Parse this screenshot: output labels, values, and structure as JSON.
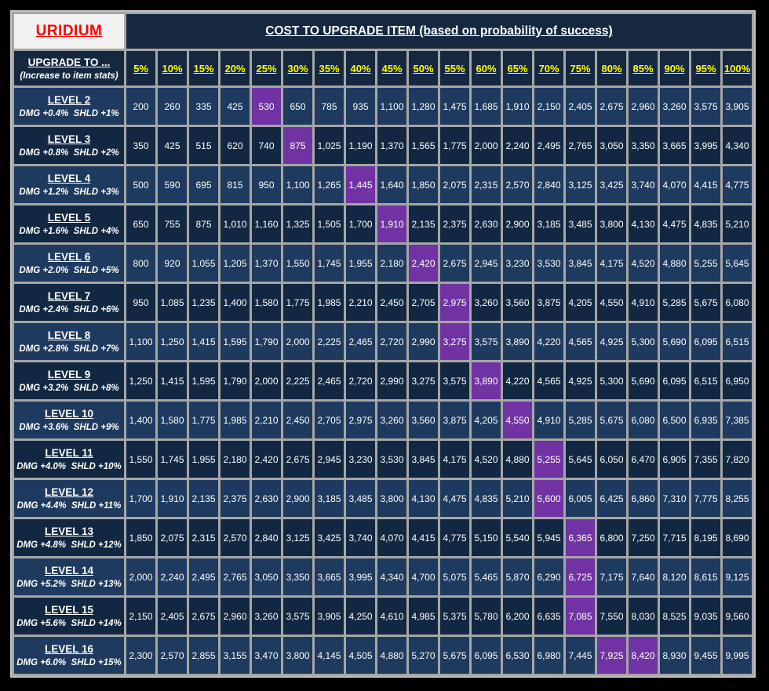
{
  "table": {
    "corner_label": "URIDIUM",
    "title": "COST TO UPGRADE ITEM (based on probability of success)",
    "row_header": {
      "main": "UPGRADE TO ...",
      "sub": "(Increase to item stats)"
    },
    "columns": [
      "5%",
      "10%",
      "15%",
      "20%",
      "25%",
      "30%",
      "35%",
      "40%",
      "45%",
      "50%",
      "55%",
      "60%",
      "65%",
      "70%",
      "75%",
      "80%",
      "85%",
      "90%",
      "95%",
      "100%"
    ],
    "rows": [
      {
        "level": "LEVEL 2",
        "stats": "DMG +0.4%  SHLD +1%",
        "highlight": [
          4
        ],
        "values": [
          "200",
          "260",
          "335",
          "425",
          "530",
          "650",
          "785",
          "935",
          "1,100",
          "1,280",
          "1,475",
          "1,685",
          "1,910",
          "2,150",
          "2,405",
          "2,675",
          "2,960",
          "3,260",
          "3,575",
          "3,905"
        ]
      },
      {
        "level": "LEVEL 3",
        "stats": "DMG +0.8%  SHLD +2%",
        "highlight": [
          5
        ],
        "values": [
          "350",
          "425",
          "515",
          "620",
          "740",
          "875",
          "1,025",
          "1,190",
          "1,370",
          "1,565",
          "1,775",
          "2,000",
          "2,240",
          "2,495",
          "2,765",
          "3,050",
          "3,350",
          "3,665",
          "3,995",
          "4,340"
        ]
      },
      {
        "level": "LEVEL 4",
        "stats": "DMG +1.2%  SHLD +3%",
        "highlight": [
          7
        ],
        "values": [
          "500",
          "590",
          "695",
          "815",
          "950",
          "1,100",
          "1,265",
          "1,445",
          "1,640",
          "1,850",
          "2,075",
          "2,315",
          "2,570",
          "2,840",
          "3,125",
          "3,425",
          "3,740",
          "4,070",
          "4,415",
          "4,775"
        ]
      },
      {
        "level": "LEVEL 5",
        "stats": "DMG +1.6%  SHLD +4%",
        "highlight": [
          8
        ],
        "values": [
          "650",
          "755",
          "875",
          "1,010",
          "1,160",
          "1,325",
          "1,505",
          "1,700",
          "1,910",
          "2,135",
          "2,375",
          "2,630",
          "2,900",
          "3,185",
          "3,485",
          "3,800",
          "4,130",
          "4,475",
          "4,835",
          "5,210"
        ]
      },
      {
        "level": "LEVEL 6",
        "stats": "DMG +2.0%  SHLD +5%",
        "highlight": [
          9
        ],
        "values": [
          "800",
          "920",
          "1,055",
          "1,205",
          "1,370",
          "1,550",
          "1,745",
          "1,955",
          "2,180",
          "2,420",
          "2,675",
          "2,945",
          "3,230",
          "3,530",
          "3,845",
          "4,175",
          "4,520",
          "4,880",
          "5,255",
          "5,645"
        ]
      },
      {
        "level": "LEVEL 7",
        "stats": "DMG +2.4%  SHLD +6%",
        "highlight": [
          10
        ],
        "values": [
          "950",
          "1,085",
          "1,235",
          "1,400",
          "1,580",
          "1,775",
          "1,985",
          "2,210",
          "2,450",
          "2,705",
          "2,975",
          "3,260",
          "3,560",
          "3,875",
          "4,205",
          "4,550",
          "4,910",
          "5,285",
          "5,675",
          "6,080"
        ]
      },
      {
        "level": "LEVEL 8",
        "stats": "DMG +2.8%  SHLD +7%",
        "highlight": [
          10
        ],
        "values": [
          "1,100",
          "1,250",
          "1,415",
          "1,595",
          "1,790",
          "2,000",
          "2,225",
          "2,465",
          "2,720",
          "2,990",
          "3,275",
          "3,575",
          "3,890",
          "4,220",
          "4,565",
          "4,925",
          "5,300",
          "5,690",
          "6,095",
          "6,515"
        ]
      },
      {
        "level": "LEVEL 9",
        "stats": "DMG +3.2%  SHLD +8%",
        "highlight": [
          11
        ],
        "values": [
          "1,250",
          "1,415",
          "1,595",
          "1,790",
          "2,000",
          "2,225",
          "2,465",
          "2,720",
          "2,990",
          "3,275",
          "3,575",
          "3,890",
          "4,220",
          "4,565",
          "4,925",
          "5,300",
          "5,690",
          "6,095",
          "6,515",
          "6,950"
        ]
      },
      {
        "level": "LEVEL 10",
        "stats": "DMG +3.6%  SHLD +9%",
        "highlight": [
          12
        ],
        "values": [
          "1,400",
          "1,580",
          "1,775",
          "1,985",
          "2,210",
          "2,450",
          "2,705",
          "2,975",
          "3,260",
          "3,560",
          "3,875",
          "4,205",
          "4,550",
          "4,910",
          "5,285",
          "5,675",
          "6,080",
          "6,500",
          "6,935",
          "7,385"
        ]
      },
      {
        "level": "LEVEL 11",
        "stats": "DMG +4.0%  SHLD +10%",
        "highlight": [
          13
        ],
        "values": [
          "1,550",
          "1,745",
          "1,955",
          "2,180",
          "2,420",
          "2,675",
          "2,945",
          "3,230",
          "3,530",
          "3,845",
          "4,175",
          "4,520",
          "4,880",
          "5,255",
          "5,645",
          "6,050",
          "6,470",
          "6,905",
          "7,355",
          "7,820"
        ]
      },
      {
        "level": "LEVEL 12",
        "stats": "DMG +4.4%  SHLD +11%",
        "highlight": [
          13
        ],
        "values": [
          "1,700",
          "1,910",
          "2,135",
          "2,375",
          "2,630",
          "2,900",
          "3,185",
          "3,485",
          "3,800",
          "4,130",
          "4,475",
          "4,835",
          "5,210",
          "5,600",
          "6,005",
          "6,425",
          "6,860",
          "7,310",
          "7,775",
          "8,255"
        ]
      },
      {
        "level": "LEVEL 13",
        "stats": "DMG +4.8%  SHLD +12%",
        "highlight": [
          14
        ],
        "values": [
          "1,850",
          "2,075",
          "2,315",
          "2,570",
          "2,840",
          "3,125",
          "3,425",
          "3,740",
          "4,070",
          "4,415",
          "4,775",
          "5,150",
          "5,540",
          "5,945",
          "6,365",
          "6,800",
          "7,250",
          "7,715",
          "8,195",
          "8,690"
        ]
      },
      {
        "level": "LEVEL 14",
        "stats": "DMG +5.2%  SHLD +13%",
        "highlight": [
          14
        ],
        "values": [
          "2,000",
          "2,240",
          "2,495",
          "2,765",
          "3,050",
          "3,350",
          "3,665",
          "3,995",
          "4,340",
          "4,700",
          "5,075",
          "5,465",
          "5,870",
          "6,290",
          "6,725",
          "7,175",
          "7,640",
          "8,120",
          "8,615",
          "9,125"
        ]
      },
      {
        "level": "LEVEL 15",
        "stats": "DMG +5.6%  SHLD +14%",
        "highlight": [
          14
        ],
        "values": [
          "2,150",
          "2,405",
          "2,675",
          "2,960",
          "3,260",
          "3,575",
          "3,905",
          "4,250",
          "4,610",
          "4,985",
          "5,375",
          "5,780",
          "6,200",
          "6,635",
          "7,085",
          "7,550",
          "8,030",
          "8,525",
          "9,035",
          "9,560"
        ]
      },
      {
        "level": "LEVEL 16",
        "stats": "DMG +6.0%  SHLD +15%",
        "highlight": [
          15,
          16
        ],
        "values": [
          "2,300",
          "2,570",
          "2,855",
          "3,155",
          "3,470",
          "3,800",
          "4,145",
          "4,505",
          "4,880",
          "5,270",
          "5,675",
          "6,095",
          "6,530",
          "6,980",
          "7,445",
          "7,925",
          "8,420",
          "8,930",
          "9,455",
          "9,995"
        ]
      }
    ],
    "colors": {
      "header_bg": "#162840",
      "row_light": "#1E3A5F",
      "row_dark": "#112742",
      "highlight": "#7133A3",
      "grid": "#A6A6A6",
      "frame": "#C3C3C3",
      "corner_bg": "#F2F2F2",
      "corner_text": "#FF0000",
      "pct_text": "#FFFF00",
      "value_text": "#FFFFFF",
      "page_bg": "#000000"
    }
  }
}
